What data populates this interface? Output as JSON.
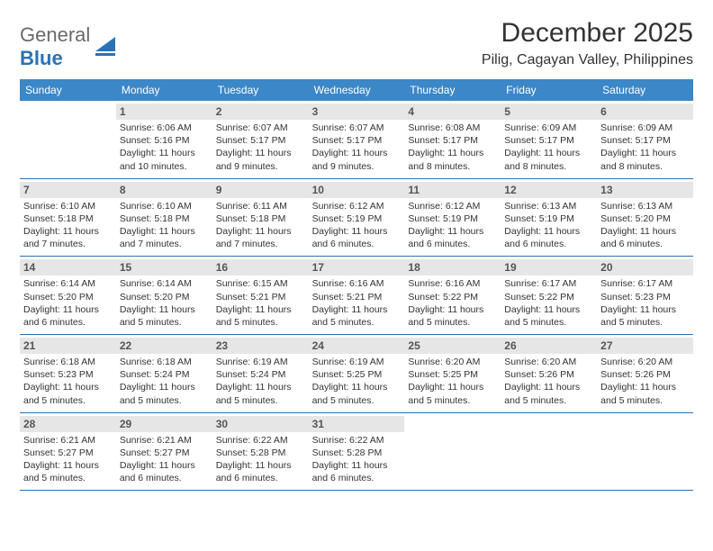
{
  "brand": {
    "word1": "General",
    "word2": "Blue"
  },
  "title": "December 2025",
  "location": "Pilig, Cagayan Valley, Philippines",
  "colors": {
    "header_bg": "#3b87c8",
    "header_text": "#ffffff",
    "daynum_bg": "#e6e6e6",
    "daynum_text": "#555555",
    "rule": "#2a72b5",
    "body_text": "#333333",
    "logo_gray": "#6a6a6a",
    "logo_blue": "#2a72b5",
    "page_bg": "#ffffff"
  },
  "typography": {
    "title_size_pt": 22,
    "location_size_pt": 12,
    "weekday_size_pt": 9,
    "daynum_size_pt": 9,
    "body_size_pt": 8
  },
  "weekdays": [
    "Sunday",
    "Monday",
    "Tuesday",
    "Wednesday",
    "Thursday",
    "Friday",
    "Saturday"
  ],
  "first_weekday_offset": 1,
  "days": [
    {
      "n": 1,
      "sunrise": "6:06 AM",
      "sunset": "5:16 PM",
      "daylight": "11 hours and 10 minutes."
    },
    {
      "n": 2,
      "sunrise": "6:07 AM",
      "sunset": "5:17 PM",
      "daylight": "11 hours and 9 minutes."
    },
    {
      "n": 3,
      "sunrise": "6:07 AM",
      "sunset": "5:17 PM",
      "daylight": "11 hours and 9 minutes."
    },
    {
      "n": 4,
      "sunrise": "6:08 AM",
      "sunset": "5:17 PM",
      "daylight": "11 hours and 8 minutes."
    },
    {
      "n": 5,
      "sunrise": "6:09 AM",
      "sunset": "5:17 PM",
      "daylight": "11 hours and 8 minutes."
    },
    {
      "n": 6,
      "sunrise": "6:09 AM",
      "sunset": "5:17 PM",
      "daylight": "11 hours and 8 minutes."
    },
    {
      "n": 7,
      "sunrise": "6:10 AM",
      "sunset": "5:18 PM",
      "daylight": "11 hours and 7 minutes."
    },
    {
      "n": 8,
      "sunrise": "6:10 AM",
      "sunset": "5:18 PM",
      "daylight": "11 hours and 7 minutes."
    },
    {
      "n": 9,
      "sunrise": "6:11 AM",
      "sunset": "5:18 PM",
      "daylight": "11 hours and 7 minutes."
    },
    {
      "n": 10,
      "sunrise": "6:12 AM",
      "sunset": "5:19 PM",
      "daylight": "11 hours and 6 minutes."
    },
    {
      "n": 11,
      "sunrise": "6:12 AM",
      "sunset": "5:19 PM",
      "daylight": "11 hours and 6 minutes."
    },
    {
      "n": 12,
      "sunrise": "6:13 AM",
      "sunset": "5:19 PM",
      "daylight": "11 hours and 6 minutes."
    },
    {
      "n": 13,
      "sunrise": "6:13 AM",
      "sunset": "5:20 PM",
      "daylight": "11 hours and 6 minutes."
    },
    {
      "n": 14,
      "sunrise": "6:14 AM",
      "sunset": "5:20 PM",
      "daylight": "11 hours and 6 minutes."
    },
    {
      "n": 15,
      "sunrise": "6:14 AM",
      "sunset": "5:20 PM",
      "daylight": "11 hours and 5 minutes."
    },
    {
      "n": 16,
      "sunrise": "6:15 AM",
      "sunset": "5:21 PM",
      "daylight": "11 hours and 5 minutes."
    },
    {
      "n": 17,
      "sunrise": "6:16 AM",
      "sunset": "5:21 PM",
      "daylight": "11 hours and 5 minutes."
    },
    {
      "n": 18,
      "sunrise": "6:16 AM",
      "sunset": "5:22 PM",
      "daylight": "11 hours and 5 minutes."
    },
    {
      "n": 19,
      "sunrise": "6:17 AM",
      "sunset": "5:22 PM",
      "daylight": "11 hours and 5 minutes."
    },
    {
      "n": 20,
      "sunrise": "6:17 AM",
      "sunset": "5:23 PM",
      "daylight": "11 hours and 5 minutes."
    },
    {
      "n": 21,
      "sunrise": "6:18 AM",
      "sunset": "5:23 PM",
      "daylight": "11 hours and 5 minutes."
    },
    {
      "n": 22,
      "sunrise": "6:18 AM",
      "sunset": "5:24 PM",
      "daylight": "11 hours and 5 minutes."
    },
    {
      "n": 23,
      "sunrise": "6:19 AM",
      "sunset": "5:24 PM",
      "daylight": "11 hours and 5 minutes."
    },
    {
      "n": 24,
      "sunrise": "6:19 AM",
      "sunset": "5:25 PM",
      "daylight": "11 hours and 5 minutes."
    },
    {
      "n": 25,
      "sunrise": "6:20 AM",
      "sunset": "5:25 PM",
      "daylight": "11 hours and 5 minutes."
    },
    {
      "n": 26,
      "sunrise": "6:20 AM",
      "sunset": "5:26 PM",
      "daylight": "11 hours and 5 minutes."
    },
    {
      "n": 27,
      "sunrise": "6:20 AM",
      "sunset": "5:26 PM",
      "daylight": "11 hours and 5 minutes."
    },
    {
      "n": 28,
      "sunrise": "6:21 AM",
      "sunset": "5:27 PM",
      "daylight": "11 hours and 5 minutes."
    },
    {
      "n": 29,
      "sunrise": "6:21 AM",
      "sunset": "5:27 PM",
      "daylight": "11 hours and 6 minutes."
    },
    {
      "n": 30,
      "sunrise": "6:22 AM",
      "sunset": "5:28 PM",
      "daylight": "11 hours and 6 minutes."
    },
    {
      "n": 31,
      "sunrise": "6:22 AM",
      "sunset": "5:28 PM",
      "daylight": "11 hours and 6 minutes."
    }
  ],
  "labels": {
    "sunrise": "Sunrise:",
    "sunset": "Sunset:",
    "daylight": "Daylight:"
  }
}
